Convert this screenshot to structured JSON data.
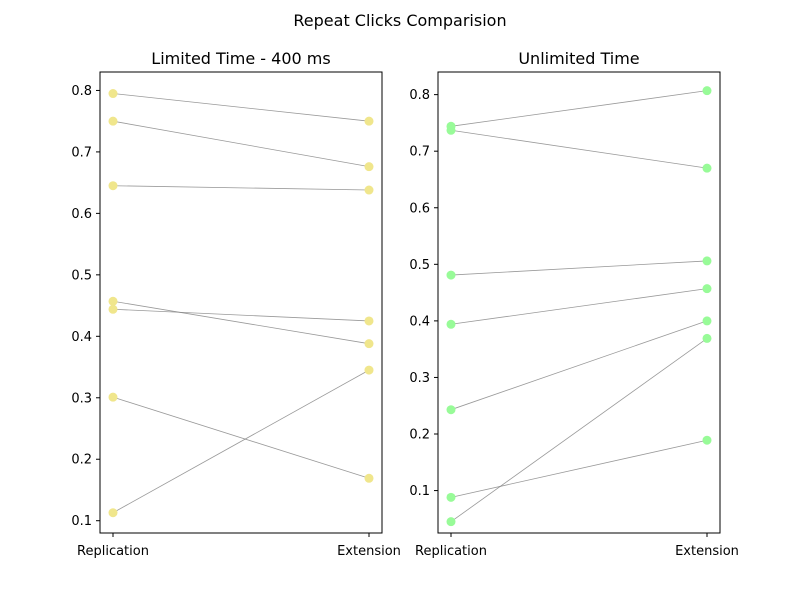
{
  "figure": {
    "title": "Repeat Clicks Comparision"
  },
  "chart_data": [
    {
      "type": "line",
      "title": "Limited Time - 400 ms",
      "categories": [
        "Replication",
        "Extension"
      ],
      "ylim": [
        0.08,
        0.83
      ],
      "yticks": [
        0.1,
        0.2,
        0.3,
        0.4,
        0.5,
        0.6,
        0.7,
        0.8
      ],
      "grid": false,
      "color": "#f0e68c",
      "pairs": [
        [
          0.795,
          0.75
        ],
        [
          0.75,
          0.676
        ],
        [
          0.645,
          0.638
        ],
        [
          0.457,
          0.388
        ],
        [
          0.444,
          0.425
        ],
        [
          0.301,
          0.169
        ],
        [
          0.113,
          0.345
        ]
      ]
    },
    {
      "type": "line",
      "title": "Unlimited Time",
      "categories": [
        "Replication",
        "Extension"
      ],
      "ylim": [
        0.025,
        0.84
      ],
      "yticks": [
        0.1,
        0.2,
        0.3,
        0.4,
        0.5,
        0.6,
        0.7,
        0.8
      ],
      "grid": false,
      "color": "#98fb98",
      "pairs": [
        [
          0.744,
          0.807
        ],
        [
          0.737,
          0.67
        ],
        [
          0.481,
          0.506
        ],
        [
          0.394,
          0.457
        ],
        [
          0.243,
          0.4
        ],
        [
          0.088,
          0.189
        ],
        [
          0.045,
          0.369
        ]
      ]
    }
  ]
}
